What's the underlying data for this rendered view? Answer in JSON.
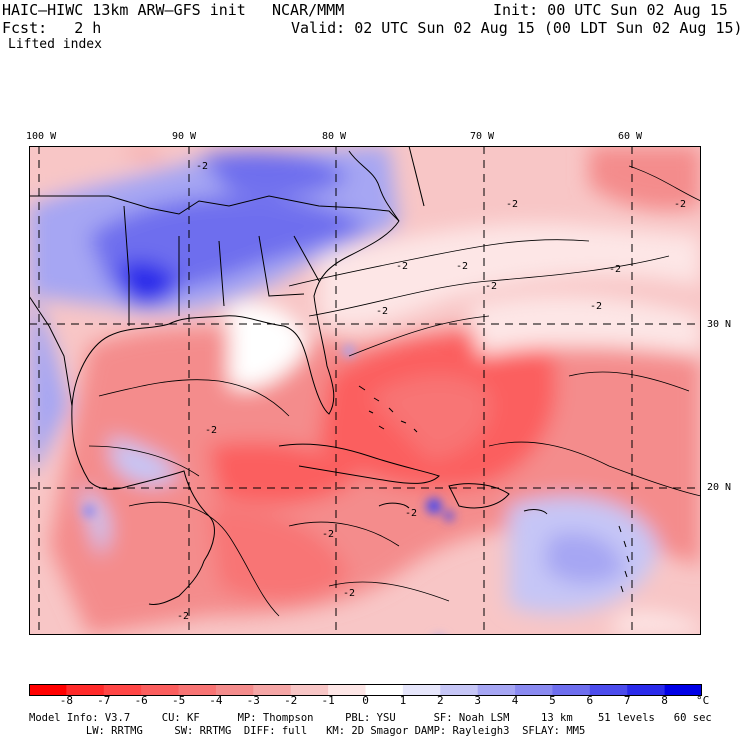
{
  "header": {
    "model": "HAIC–HIWC 13km ARW–GFS init",
    "center": "NCAR/MMM",
    "init": "Init: 00 UTC Sun 02 Aug 15",
    "fcst": "Fcst:   2 h",
    "valid": "Valid: 02 UTC Sun 02 Aug 15 (00 LDT Sun 02 Aug 15)",
    "field": "Lifted index"
  },
  "axes": {
    "lon_labels": [
      "100 W",
      "90 W",
      "80 W",
      "70 W",
      "60 W"
    ],
    "lat_labels": [
      "30 N",
      "20 N"
    ]
  },
  "contour_label": "-2",
  "colorbar": {
    "levels": [
      "-8",
      "-7",
      "-6",
      "-5",
      "-4",
      "-3",
      "-2",
      "-1",
      "0",
      "1",
      "2",
      "3",
      "4",
      "5",
      "6",
      "7",
      "8"
    ],
    "unit": "°C",
    "colors": [
      "#ff0000",
      "#ff2a2a",
      "#ff4646",
      "#fb5e5e",
      "#f87474",
      "#f48c8c",
      "#f5a6a6",
      "#f8c6c6",
      "#fde6e6",
      "#ffffff",
      "#e6e6fb",
      "#c6c6f6",
      "#a6a6f3",
      "#8a8af0",
      "#6e6eee",
      "#4c4cec",
      "#2a2aea",
      "#0000e6"
    ]
  },
  "footer": {
    "line1": "Model Info: V3.7     CU: KF      MP: Thompson     PBL: YSU      SF: Noah LSM     13 km    51 levels   60 sec",
    "line2": "         LW: RRTMG     SW: RRTMG  DIFF: full   KM: 2D Smagor DAMP: Rayleigh3  SFLAY: MM5"
  }
}
